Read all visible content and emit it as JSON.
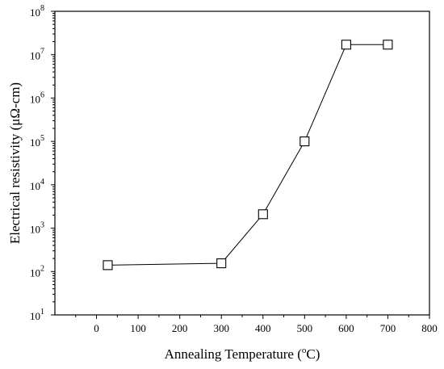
{
  "chart_data": {
    "type": "line",
    "title": "",
    "xlabel": "Annealing Temperature (",
    "xlabel_sup": "o",
    "xlabel_tail": "C)",
    "ylabel": "Electrical resistivity (μΩ-cm)",
    "xlim": [
      -100,
      800
    ],
    "ylim": [
      10,
      100000000
    ],
    "y_scale": "log",
    "grid": false,
    "x_ticks": [
      0,
      100,
      200,
      300,
      400,
      500,
      600,
      700,
      800
    ],
    "y_tick_base": "10",
    "y_tick_exponents": [
      "1",
      "2",
      "3",
      "4",
      "5",
      "6",
      "7",
      "8"
    ],
    "marker": "open-square",
    "series": [
      {
        "x": [
          27,
          300,
          400,
          500,
          600,
          700
        ],
        "y": [
          140,
          155,
          2100,
          100000,
          17000000,
          17000000
        ]
      }
    ]
  }
}
